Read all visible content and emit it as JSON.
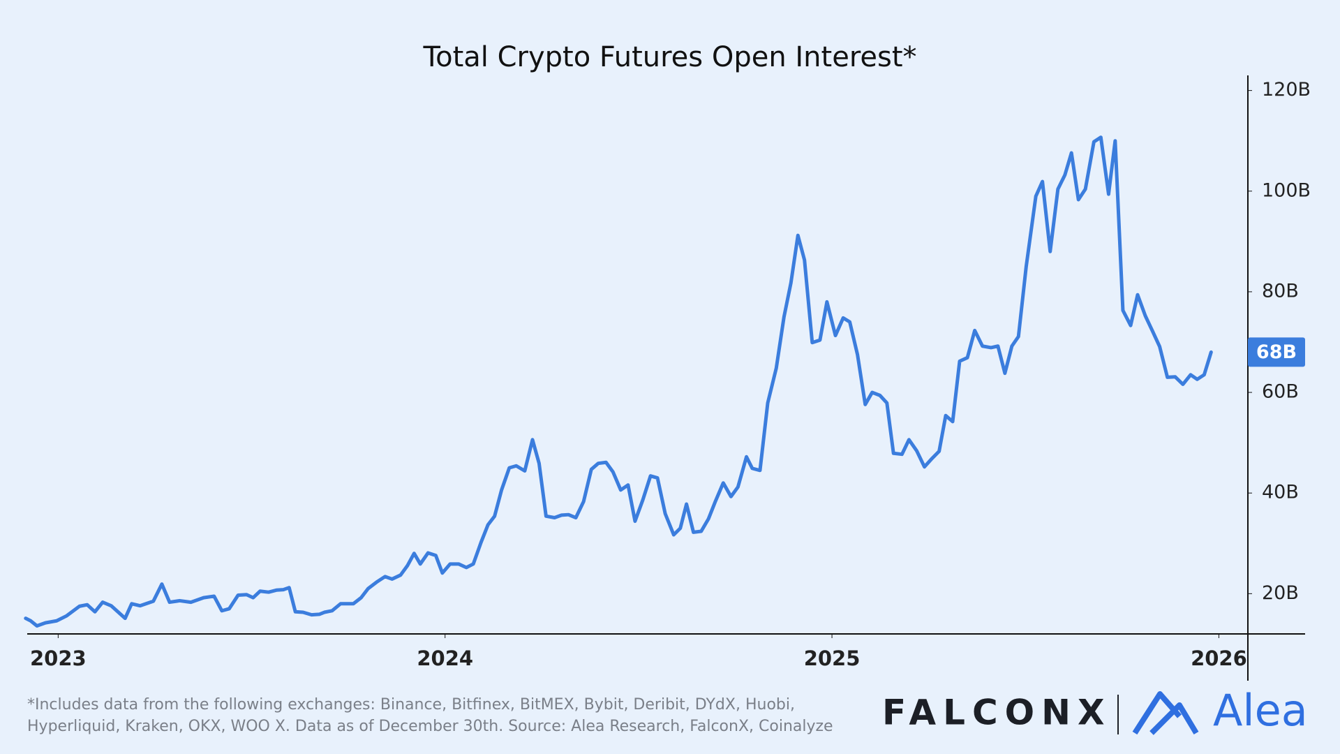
{
  "chart_data": {
    "type": "line",
    "title": "Total Crypto Futures Open Interest*",
    "color": "#3b7ddd",
    "x": [
      2022.916,
      2022.929,
      2022.945,
      2022.967,
      2022.996,
      2023.022,
      2023.055,
      2023.075,
      2023.095,
      2023.115,
      2023.137,
      2023.173,
      2023.19,
      2023.212,
      2023.246,
      2023.268,
      2023.288,
      2023.314,
      2023.343,
      2023.376,
      2023.403,
      2023.423,
      2023.442,
      2023.465,
      2023.487,
      2023.504,
      2023.522,
      2023.544,
      2023.564,
      2023.582,
      2023.597,
      2023.613,
      2023.633,
      2023.655,
      2023.675,
      2023.688,
      2023.708,
      2023.73,
      2023.763,
      2023.783,
      2023.801,
      2023.825,
      2023.845,
      2023.863,
      2023.885,
      2023.903,
      2023.92,
      2023.936,
      2023.956,
      2023.976,
      2023.993,
      2024.013,
      2024.035,
      2024.055,
      2024.073,
      2024.093,
      2024.111,
      2024.128,
      2024.146,
      2024.166,
      2024.184,
      2024.206,
      2024.226,
      2024.243,
      2024.261,
      2024.283,
      2024.301,
      2024.319,
      2024.338,
      2024.358,
      2024.378,
      2024.396,
      2024.416,
      2024.434,
      2024.454,
      2024.473,
      2024.491,
      2024.511,
      2024.531,
      2024.549,
      2024.569,
      2024.591,
      2024.608,
      2024.624,
      2024.642,
      2024.662,
      2024.681,
      2024.699,
      2024.719,
      2024.739,
      2024.757,
      2024.779,
      2024.794,
      2024.814,
      2024.834,
      2024.856,
      2024.876,
      2024.894,
      2024.912,
      2024.929,
      2024.949,
      2024.969,
      2024.987,
      2025.009,
      2025.029,
      2025.046,
      2025.066,
      2025.086,
      2025.104,
      2025.124,
      2025.142,
      2025.159,
      2025.181,
      2025.199,
      2025.219,
      2025.239,
      2025.259,
      2025.277,
      2025.294,
      2025.312,
      2025.33,
      2025.35,
      2025.369,
      2025.389,
      2025.411,
      2025.429,
      2025.447,
      2025.465,
      2025.482,
      2025.502,
      2025.527,
      2025.544,
      2025.564,
      2025.584,
      2025.602,
      2025.619,
      2025.637,
      2025.655,
      2025.677,
      2025.695,
      2025.715,
      2025.732,
      2025.752,
      2025.772,
      2025.79,
      2025.81,
      2025.829,
      2025.847,
      2025.867,
      2025.887,
      2025.907,
      2025.927,
      2025.944,
      2025.962,
      2025.98
    ],
    "values": [
      15.1,
      14.6,
      13.6,
      14.2,
      14.6,
      15.6,
      17.5,
      17.8,
      16.4,
      18.3,
      17.6,
      15.1,
      18.0,
      17.6,
      18.5,
      21.9,
      18.3,
      18.6,
      18.3,
      19.2,
      19.5,
      16.6,
      17.0,
      19.7,
      19.8,
      19.2,
      20.5,
      20.3,
      20.7,
      20.8,
      21.2,
      16.4,
      16.3,
      15.8,
      15.9,
      16.3,
      16.6,
      18.0,
      18.0,
      19.2,
      21.0,
      22.4,
      23.4,
      22.9,
      23.7,
      25.6,
      28.0,
      25.9,
      28.1,
      27.6,
      24.1,
      25.9,
      25.9,
      25.2,
      25.9,
      30.2,
      33.7,
      35.4,
      40.6,
      45.0,
      45.4,
      44.4,
      50.6,
      45.9,
      35.4,
      35.1,
      35.6,
      35.7,
      35.1,
      38.3,
      44.7,
      45.9,
      46.1,
      44.2,
      40.6,
      41.6,
      34.4,
      38.6,
      43.4,
      43.0,
      35.9,
      31.7,
      33.0,
      37.8,
      32.2,
      32.4,
      34.9,
      38.4,
      42.0,
      39.3,
      41.2,
      47.2,
      44.9,
      44.5,
      57.9,
      64.8,
      75.0,
      81.8,
      91.2,
      86.3,
      69.9,
      70.4,
      78.0,
      71.3,
      74.8,
      74.0,
      67.5,
      57.6,
      60.0,
      59.4,
      57.9,
      47.9,
      47.7,
      50.6,
      48.4,
      45.2,
      46.9,
      48.3,
      55.4,
      54.2,
      66.2,
      66.9,
      72.3,
      69.2,
      68.9,
      69.2,
      63.8,
      69.2,
      71.1,
      85.0,
      99.0,
      101.9,
      88.0,
      100.4,
      103.2,
      107.6,
      98.3,
      100.4,
      109.8,
      110.7,
      99.4,
      110.0,
      76.3,
      73.3,
      79.4,
      75.2,
      72.1,
      69.1,
      63.0,
      63.1,
      61.6,
      63.5,
      62.6,
      63.5,
      68
    ],
    "xlim": [
      2022.92,
      2026.075
    ],
    "xticks": [
      2023,
      2024,
      2025,
      2026
    ],
    "ylim": [
      12,
      123
    ],
    "yticks": [
      {
        "value": 20,
        "label": "20B"
      },
      {
        "value": 40,
        "label": "40B"
      },
      {
        "value": 60,
        "label": "60B"
      },
      {
        "value": 80,
        "label": "80B"
      },
      {
        "value": 100,
        "label": "100B"
      },
      {
        "value": 120,
        "label": "120B"
      }
    ],
    "y_axis_side": "right",
    "end_label": {
      "value": 68,
      "label": "68B"
    }
  },
  "footnote": [
    "*Includes data from the following exchanges: Binance, Bitfinex, BitMEX, Bybit, Deribit, DYdX, Huobi,",
    "Hyperliquid, Kraken, OKX, WOO X. Data as of December 30th. Source: Alea Research, FalconX, Coinalyze"
  ],
  "logos": [
    "FALCONX",
    "Alea"
  ]
}
